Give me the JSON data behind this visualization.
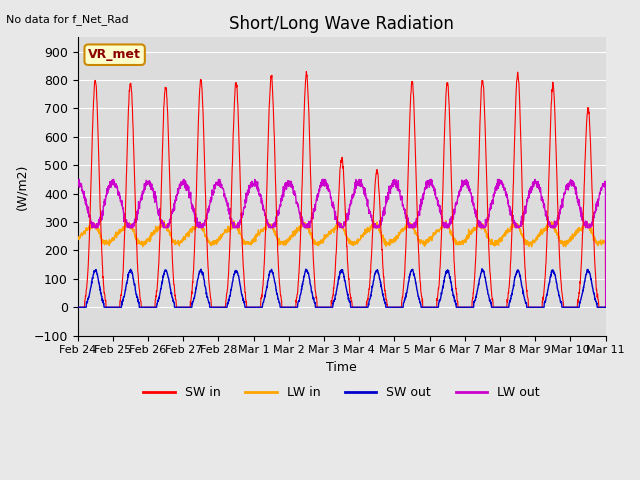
{
  "title": "Short/Long Wave Radiation",
  "ylabel": "(W/m2)",
  "xlabel": "Time",
  "ylim": [
    -100,
    950
  ],
  "yticks": [
    -100,
    0,
    100,
    200,
    300,
    400,
    500,
    600,
    700,
    800,
    900
  ],
  "xtick_labels": [
    "Feb 24",
    "Feb 25",
    "Feb 26",
    "Feb 27",
    "Feb 28",
    "Mar 1",
    "Mar 2",
    "Mar 3",
    "Mar 4",
    "Mar 5",
    "Mar 6",
    "Mar 7",
    "Mar 8",
    "Mar 9",
    "Mar 10",
    "Mar 11"
  ],
  "top_left_text": "No data for f_Net_Rad",
  "box_label": "VR_met",
  "sw_in_color": "#ff0000",
  "lw_in_color": "#ffa500",
  "sw_out_color": "#0000cc",
  "lw_out_color": "#cc00cc",
  "n_days": 15,
  "pts_per_day": 144,
  "sw_in_peaks": [
    800,
    790,
    775,
    800,
    790,
    810,
    820,
    525,
    480,
    790,
    790,
    800,
    820,
    780,
    700
  ],
  "lw_in_base": 250,
  "sw_out_peak": 130,
  "lw_out_base": 360,
  "lw_out_amp": 80
}
